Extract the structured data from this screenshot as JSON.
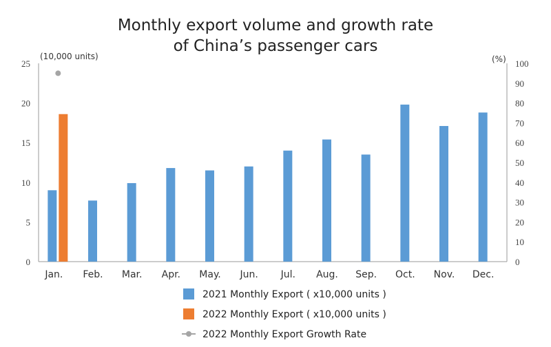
{
  "chart_data": {
    "type": "bar",
    "title": "Monthly export volume and growth rate of China’s passenger cars",
    "title_lines": [
      "Monthly export volume and growth rate",
      "of China’s passenger cars"
    ],
    "left_axis_unit": "(10,000 units)",
    "right_axis_unit": "(%)",
    "categories": [
      "Jan.",
      "Feb.",
      "Mar.",
      "Apr.",
      "May.",
      "Jun.",
      "Jul.",
      "Aug.",
      "Sep.",
      "Oct.",
      "Nov.",
      "Dec."
    ],
    "ylim": [
      0,
      25
    ],
    "yticks": [
      0,
      5,
      10,
      15,
      20,
      25
    ],
    "y2lim": [
      0,
      100
    ],
    "y2ticks": [
      0,
      10,
      20,
      30,
      40,
      50,
      60,
      70,
      80,
      90,
      100
    ],
    "grid": false,
    "legend_position": "bottom",
    "series": [
      {
        "name": "2021 Monthly Export ( x10,000 units )",
        "type": "bar",
        "axis": "left",
        "color": "#5b9bd5",
        "values": [
          9.0,
          7.7,
          9.9,
          11.8,
          11.5,
          12.0,
          14.0,
          15.4,
          13.5,
          19.8,
          17.1,
          18.8
        ]
      },
      {
        "name": "2022 Monthly Export ( x10,000 units )",
        "type": "bar",
        "axis": "left",
        "color": "#ed7d31",
        "values": [
          18.6,
          null,
          null,
          null,
          null,
          null,
          null,
          null,
          null,
          null,
          null,
          null
        ]
      },
      {
        "name": "2022 Monthly Export Growth Rate",
        "type": "scatter",
        "axis": "right",
        "color": "#a5a5a5",
        "values": [
          95,
          null,
          null,
          null,
          null,
          null,
          null,
          null,
          null,
          null,
          null,
          null
        ]
      }
    ]
  }
}
